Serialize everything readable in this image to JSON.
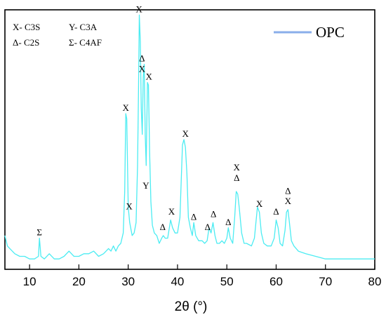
{
  "chart_data": {
    "type": "line",
    "title": "",
    "xlabel": "2θ (°)",
    "ylabel": "",
    "xlim": [
      5,
      80
    ],
    "ylim": [
      0,
      100
    ],
    "xticks": [
      10,
      20,
      30,
      40,
      50,
      60,
      70,
      80
    ],
    "series_color": "#4cecf2",
    "legend_color": "#8aaeea",
    "grid": false,
    "legend_position": "top-right",
    "series": [
      {
        "name": "OPC",
        "x": [
          5,
          5.5,
          6,
          7,
          8,
          9,
          10,
          11,
          11.8,
          12,
          12.3,
          13,
          14,
          15,
          16,
          17,
          18,
          19,
          20,
          21,
          22,
          23,
          24,
          25,
          26,
          26.5,
          27,
          27.5,
          28,
          28.5,
          29,
          29.3,
          29.5,
          29.7,
          30,
          30.3,
          30.8,
          31.2,
          31.6,
          31.9,
          32.1,
          32.25,
          32.45,
          32.65,
          32.85,
          33.05,
          33.25,
          33.45,
          33.65,
          33.9,
          34.1,
          34.35,
          34.6,
          34.9,
          35.3,
          35.8,
          36.3,
          36.8,
          37.1,
          37.5,
          38,
          38.6,
          39,
          39.5,
          40,
          40.5,
          41,
          41.3,
          41.6,
          41.9,
          42.2,
          42.6,
          43,
          43.3,
          43.7,
          44.3,
          45,
          45.5,
          46,
          46.4,
          46.8,
          47.2,
          47.6,
          48,
          48.5,
          49,
          49.5,
          50,
          50.3,
          50.7,
          51.2,
          51.6,
          51.9,
          52.2,
          52.5,
          53,
          53.5,
          54,
          55,
          55.6,
          56.2,
          56.6,
          57,
          57.5,
          58.2,
          59,
          59.6,
          60,
          60.4,
          60.8,
          61.3,
          61.8,
          62.1,
          62.4,
          62.7,
          63.1,
          63.6,
          64.5,
          66,
          68,
          70,
          72,
          74,
          76,
          78,
          80
        ],
        "values": [
          13,
          9,
          8,
          6,
          5,
          5,
          4,
          4,
          5,
          12,
          5,
          4,
          6,
          4,
          4,
          5,
          7,
          5,
          5,
          6,
          6,
          7,
          5,
          6,
          8,
          7,
          9,
          7,
          9,
          10,
          14,
          30,
          60,
          58,
          24,
          18,
          13,
          14,
          18,
          40,
          70,
          98,
          88,
          62,
          52,
          74,
          79,
          52,
          40,
          72,
          71,
          45,
          26,
          17,
          14,
          13,
          10,
          12,
          13,
          12,
          12,
          19,
          16,
          14,
          14,
          20,
          48,
          50,
          47,
          37,
          20,
          16,
          13,
          18,
          13,
          11,
          11,
          10,
          11,
          16,
          14,
          18,
          13,
          10,
          10,
          11,
          10,
          12,
          16,
          12,
          10,
          20,
          30,
          29,
          24,
          14,
          10,
          10,
          9,
          12,
          24,
          22,
          14,
          10,
          9,
          9,
          12,
          19,
          16,
          10,
          9,
          15,
          22,
          23,
          18,
          11,
          9,
          7,
          6,
          5,
          4,
          4,
          4,
          4,
          4,
          4
        ]
      }
    ],
    "annotations": [
      {
        "text": "Σ",
        "x": 12,
        "y": 12
      },
      {
        "text": "X",
        "x": 29.5,
        "y": 60
      },
      {
        "text": "X",
        "x": 30.2,
        "y": 22
      },
      {
        "text": "X",
        "x": 32.2,
        "y": 98
      },
      {
        "text": "Δ",
        "x": 32.8,
        "y": 79
      },
      {
        "text": "X",
        "x": 32.8,
        "y": 75
      },
      {
        "text": "Y",
        "x": 33.6,
        "y": 30
      },
      {
        "text": "X",
        "x": 34.2,
        "y": 72
      },
      {
        "text": "Δ",
        "x": 37,
        "y": 14
      },
      {
        "text": "X",
        "x": 38.8,
        "y": 20
      },
      {
        "text": "X",
        "x": 41.6,
        "y": 50
      },
      {
        "text": "Δ",
        "x": 43.3,
        "y": 18
      },
      {
        "text": "Δ",
        "x": 46.1,
        "y": 14
      },
      {
        "text": "Δ",
        "x": 47.3,
        "y": 19
      },
      {
        "text": "Δ",
        "x": 50.3,
        "y": 16
      },
      {
        "text": "X",
        "x": 52,
        "y": 37
      },
      {
        "text": "Δ",
        "x": 52,
        "y": 33
      },
      {
        "text": "X",
        "x": 56.6,
        "y": 23
      },
      {
        "text": "Δ",
        "x": 60,
        "y": 20
      },
      {
        "text": "Δ",
        "x": 62.4,
        "y": 28
      },
      {
        "text": "X",
        "x": 62.4,
        "y": 24
      }
    ],
    "phase_key": [
      [
        "X- C3S",
        "Y- C3A"
      ],
      [
        "Δ- C2S",
        "Σ- C4AF"
      ]
    ]
  }
}
